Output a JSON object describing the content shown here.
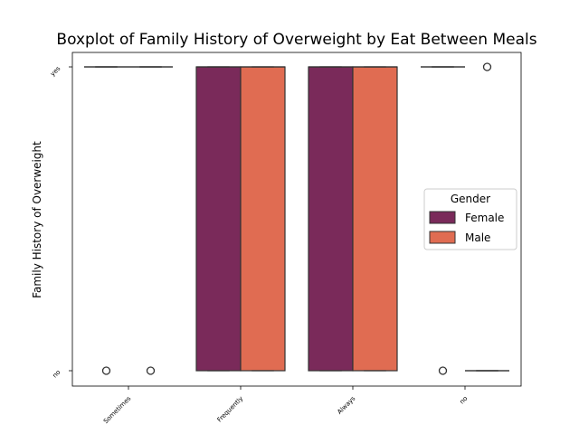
{
  "chart_data": {
    "type": "boxplot",
    "title": "Boxplot of Family History of Overweight by Eat Between Meals",
    "xlabel": "",
    "ylabel": "Family History of Overweight",
    "categories": [
      "Sometimes",
      "Frequently",
      "Always",
      "no"
    ],
    "y_categories": [
      "yes",
      "no"
    ],
    "legend": {
      "title": "Gender",
      "placement": "center-right",
      "entries": [
        {
          "name": "Female",
          "color": "#7a2a5a"
        },
        {
          "name": "Male",
          "color": "#e06c52"
        }
      ]
    },
    "series": [
      {
        "name": "Female",
        "color": "#7a2a5a",
        "boxes": [
          {
            "category": "Sometimes",
            "min": "yes",
            "q1": "yes",
            "median": "yes",
            "q3": "yes",
            "max": "yes",
            "outliers": [
              "no"
            ]
          },
          {
            "category": "Frequently",
            "min": "no",
            "q1": "no",
            "median": "yes",
            "q3": "yes",
            "max": "yes",
            "outliers": []
          },
          {
            "category": "Always",
            "min": "no",
            "q1": "no",
            "median": "yes",
            "q3": "yes",
            "max": "yes",
            "outliers": []
          },
          {
            "category": "no",
            "min": "yes",
            "q1": "yes",
            "median": "yes",
            "q3": "yes",
            "max": "yes",
            "outliers": [
              "no"
            ]
          }
        ]
      },
      {
        "name": "Male",
        "color": "#e06c52",
        "boxes": [
          {
            "category": "Sometimes",
            "min": "yes",
            "q1": "yes",
            "median": "yes",
            "q3": "yes",
            "max": "yes",
            "outliers": [
              "no"
            ]
          },
          {
            "category": "Frequently",
            "min": "no",
            "q1": "no",
            "median": "yes",
            "q3": "yes",
            "max": "yes",
            "outliers": []
          },
          {
            "category": "Always",
            "min": "no",
            "q1": "no",
            "median": "yes",
            "q3": "yes",
            "max": "yes",
            "outliers": []
          },
          {
            "category": "no",
            "min": "no",
            "q1": "no",
            "median": "no",
            "q3": "no",
            "max": "no",
            "outliers": [
              "yes"
            ]
          }
        ]
      }
    ],
    "grid": false
  }
}
